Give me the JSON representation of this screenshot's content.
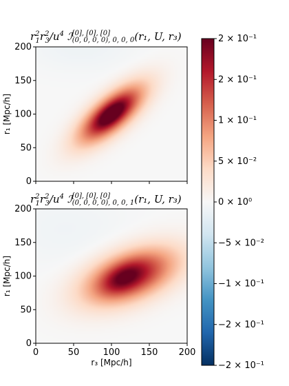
{
  "chart_data": [
    {
      "type": "heatmap",
      "title_parts": {
        "prefix": "r",
        "sup1": "2",
        "sub1": "1",
        "mid": "r",
        "sup2": "2",
        "sub2": "3",
        "mid2": "/u",
        "sup3": "4",
        "script": " ℐ",
        "sup4": "[0], [0], [0]",
        "sub4": "(0, 0, 0, 0), 0, 0, 0",
        "tail": "(r₁, U, r₃)"
      },
      "xlabel": "",
      "ylabel": "r₁ [Mpc/h]",
      "xlim": [
        0,
        200
      ],
      "ylim": [
        0,
        200
      ],
      "xticks": [],
      "yticks": [
        "0",
        "50",
        "100",
        "150",
        "200"
      ],
      "blobs": [
        {
          "cx": 100,
          "cy": 100,
          "sx": 40,
          "sy": 16,
          "angle": 45,
          "amp": 0.19
        },
        {
          "cx": 100,
          "cy": 100,
          "sx": 18,
          "sy": 8,
          "angle": 45,
          "amp": 0.06
        }
      ],
      "neg_blobs": [
        {
          "cx": 60,
          "cy": 200,
          "sx": 50,
          "sy": 25,
          "angle": 0,
          "amp": -0.01
        }
      ]
    },
    {
      "type": "heatmap",
      "title_parts": {
        "prefix": "r",
        "sup1": "2",
        "sub1": "1",
        "mid": "r",
        "sup2": "2",
        "sub2": "3",
        "mid2": "/u",
        "sup3": "4",
        "script": " ℐ",
        "sup4": "[0], [0], [0]",
        "sub4": "(0, 0, 0, 0), 0, 0, 1",
        "tail": "(r₁, U, r₃)"
      },
      "xlabel": "r₃ [Mpc/h]",
      "ylabel": "r₁ [Mpc/h]",
      "xlim": [
        0,
        200
      ],
      "ylim": [
        0,
        200
      ],
      "xticks": [
        "0",
        "50",
        "100",
        "150",
        "200"
      ],
      "yticks": [
        "0",
        "50",
        "100",
        "150",
        "200"
      ],
      "blobs": [
        {
          "cx": 125,
          "cy": 100,
          "sx": 45,
          "sy": 24,
          "angle": 25,
          "amp": 0.17
        },
        {
          "cx": 115,
          "cy": 97,
          "sx": 20,
          "sy": 12,
          "angle": 35,
          "amp": 0.05
        }
      ],
      "neg_blobs": [
        {
          "cx": 40,
          "cy": 170,
          "sx": 60,
          "sy": 40,
          "angle": 0,
          "amp": -0.008
        }
      ]
    }
  ],
  "colorbar": {
    "colormap": "RdBu_r",
    "vmin": -0.2,
    "vmax": 0.2,
    "ticks": [
      {
        "value": 0.2,
        "label": "2 × 10⁻¹"
      },
      {
        "value": 0.15,
        "label": "2 × 10⁻¹"
      },
      {
        "value": 0.1,
        "label": "1 × 10⁻¹"
      },
      {
        "value": 0.05,
        "label": "5 × 10⁻²"
      },
      {
        "value": 0.0,
        "label": "0 × 10⁰"
      },
      {
        "value": -0.05,
        "label": "−5 × 10⁻²"
      },
      {
        "value": -0.1,
        "label": "−1 × 10⁻¹"
      },
      {
        "value": -0.15,
        "label": "−2 × 10⁻¹"
      },
      {
        "value": -0.2,
        "label": "−2 × 10⁻¹"
      }
    ]
  }
}
